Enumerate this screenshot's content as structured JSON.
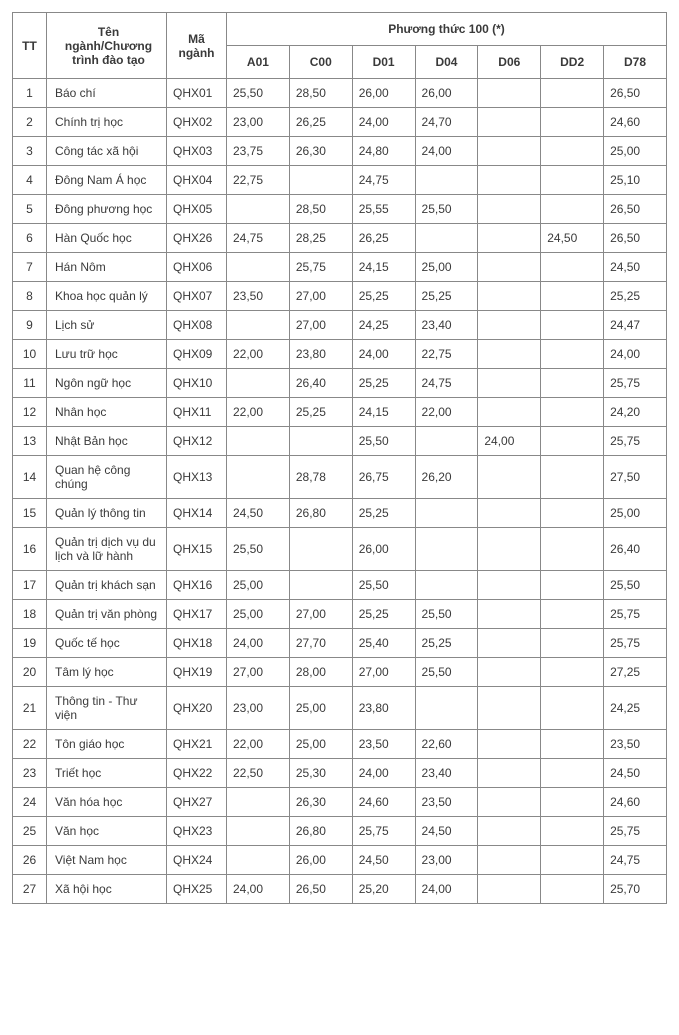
{
  "table": {
    "header": {
      "tt": "TT",
      "name": "Tên ngành/Chương trình đào tạo",
      "code": "Mã ngành",
      "group": "Phương thức 100 (*)",
      "subcols": [
        "A01",
        "C00",
        "D01",
        "D04",
        "D06",
        "DD2",
        "D78"
      ]
    },
    "colors": {
      "border": "#888888",
      "text": "#3a3a3a",
      "background": "#ffffff"
    },
    "rows": [
      {
        "tt": "1",
        "name": "Báo chí",
        "code": "QHX01",
        "s": [
          "25,50",
          "28,50",
          "26,00",
          "26,00",
          "",
          "",
          "26,50"
        ]
      },
      {
        "tt": "2",
        "name": "Chính trị học",
        "code": "QHX02",
        "s": [
          "23,00",
          "26,25",
          "24,00",
          "24,70",
          "",
          "",
          "24,60"
        ]
      },
      {
        "tt": "3",
        "name": "Công tác xã hội",
        "code": "QHX03",
        "s": [
          "23,75",
          "26,30",
          "24,80",
          "24,00",
          "",
          "",
          "25,00"
        ]
      },
      {
        "tt": "4",
        "name": "Đông Nam Á học",
        "code": "QHX04",
        "s": [
          "22,75",
          "",
          "24,75",
          "",
          "",
          "",
          "25,10"
        ]
      },
      {
        "tt": "5",
        "name": "Đông phương học",
        "code": "QHX05",
        "s": [
          "",
          "28,50",
          "25,55",
          "25,50",
          "",
          "",
          "26,50"
        ]
      },
      {
        "tt": "6",
        "name": "Hàn Quốc học",
        "code": "QHX26",
        "s": [
          "24,75",
          "28,25",
          "26,25",
          "",
          "",
          "24,50",
          "26,50"
        ]
      },
      {
        "tt": "7",
        "name": "Hán Nôm",
        "code": "QHX06",
        "s": [
          "",
          "25,75",
          "24,15",
          "25,00",
          "",
          "",
          "24,50"
        ]
      },
      {
        "tt": "8",
        "name": "Khoa học quản lý",
        "code": "QHX07",
        "s": [
          "23,50",
          "27,00",
          "25,25",
          "25,25",
          "",
          "",
          "25,25"
        ]
      },
      {
        "tt": "9",
        "name": "Lịch sử",
        "code": "QHX08",
        "s": [
          "",
          "27,00",
          "24,25",
          "23,40",
          "",
          "",
          "24,47"
        ]
      },
      {
        "tt": "10",
        "name": "Lưu trữ học",
        "code": "QHX09",
        "s": [
          "22,00",
          "23,80",
          "24,00",
          "22,75",
          "",
          "",
          "24,00"
        ]
      },
      {
        "tt": "11",
        "name": "Ngôn ngữ học",
        "code": "QHX10",
        "s": [
          "",
          "26,40",
          "25,25",
          "24,75",
          "",
          "",
          "25,75"
        ]
      },
      {
        "tt": "12",
        "name": "Nhân học",
        "code": "QHX11",
        "s": [
          "22,00",
          "25,25",
          "24,15",
          "22,00",
          "",
          "",
          "24,20"
        ]
      },
      {
        "tt": "13",
        "name": "Nhật Bản học",
        "code": "QHX12",
        "s": [
          "",
          "",
          "25,50",
          "",
          "24,00",
          "",
          "25,75"
        ]
      },
      {
        "tt": "14",
        "name": "Quan hệ công chúng",
        "code": "QHX13",
        "s": [
          "",
          "28,78",
          "26,75",
          "26,20",
          "",
          "",
          "27,50"
        ]
      },
      {
        "tt": "15",
        "name": "Quản lý thông tin",
        "code": "QHX14",
        "s": [
          "24,50",
          "26,80",
          "25,25",
          "",
          "",
          "",
          "25,00"
        ]
      },
      {
        "tt": "16",
        "name": "Quản trị dịch vụ du lịch và lữ hành",
        "code": "QHX15",
        "s": [
          "25,50",
          "",
          "26,00",
          "",
          "",
          "",
          "26,40"
        ]
      },
      {
        "tt": "17",
        "name": "Quản trị khách sạn",
        "code": "QHX16",
        "s": [
          "25,00",
          "",
          "25,50",
          "",
          "",
          "",
          "25,50"
        ]
      },
      {
        "tt": "18",
        "name": "Quản trị văn phòng",
        "code": "QHX17",
        "s": [
          "25,00",
          "27,00",
          "25,25",
          "25,50",
          "",
          "",
          "25,75"
        ]
      },
      {
        "tt": "19",
        "name": "Quốc tế học",
        "code": "QHX18",
        "s": [
          "24,00",
          "27,70",
          "25,40",
          "25,25",
          "",
          "",
          "25,75"
        ]
      },
      {
        "tt": "20",
        "name": "Tâm lý học",
        "code": "QHX19",
        "s": [
          "27,00",
          "28,00",
          "27,00",
          "25,50",
          "",
          "",
          "27,25"
        ]
      },
      {
        "tt": "21",
        "name": "Thông tin - Thư viện",
        "code": "QHX20",
        "s": [
          "23,00",
          "25,00",
          "23,80",
          "",
          "",
          "",
          "24,25"
        ]
      },
      {
        "tt": "22",
        "name": "Tôn giáo học",
        "code": "QHX21",
        "s": [
          "22,00",
          "25,00",
          "23,50",
          "22,60",
          "",
          "",
          "23,50"
        ]
      },
      {
        "tt": "23",
        "name": "Triết học",
        "code": "QHX22",
        "s": [
          "22,50",
          "25,30",
          "24,00",
          "23,40",
          "",
          "",
          "24,50"
        ]
      },
      {
        "tt": "24",
        "name": "Văn hóa học",
        "code": "QHX27",
        "s": [
          "",
          "26,30",
          "24,60",
          "23,50",
          "",
          "",
          "24,60"
        ]
      },
      {
        "tt": "25",
        "name": "Văn học",
        "code": "QHX23",
        "s": [
          "",
          "26,80",
          "25,75",
          "24,50",
          "",
          "",
          "25,75"
        ]
      },
      {
        "tt": "26",
        "name": "Việt Nam học",
        "code": "QHX24",
        "s": [
          "",
          "26,00",
          "24,50",
          "23,00",
          "",
          "",
          "24,75"
        ]
      },
      {
        "tt": "27",
        "name": "Xã hội học",
        "code": "QHX25",
        "s": [
          "24,00",
          "26,50",
          "25,20",
          "24,00",
          "",
          "",
          "25,70"
        ]
      }
    ]
  }
}
